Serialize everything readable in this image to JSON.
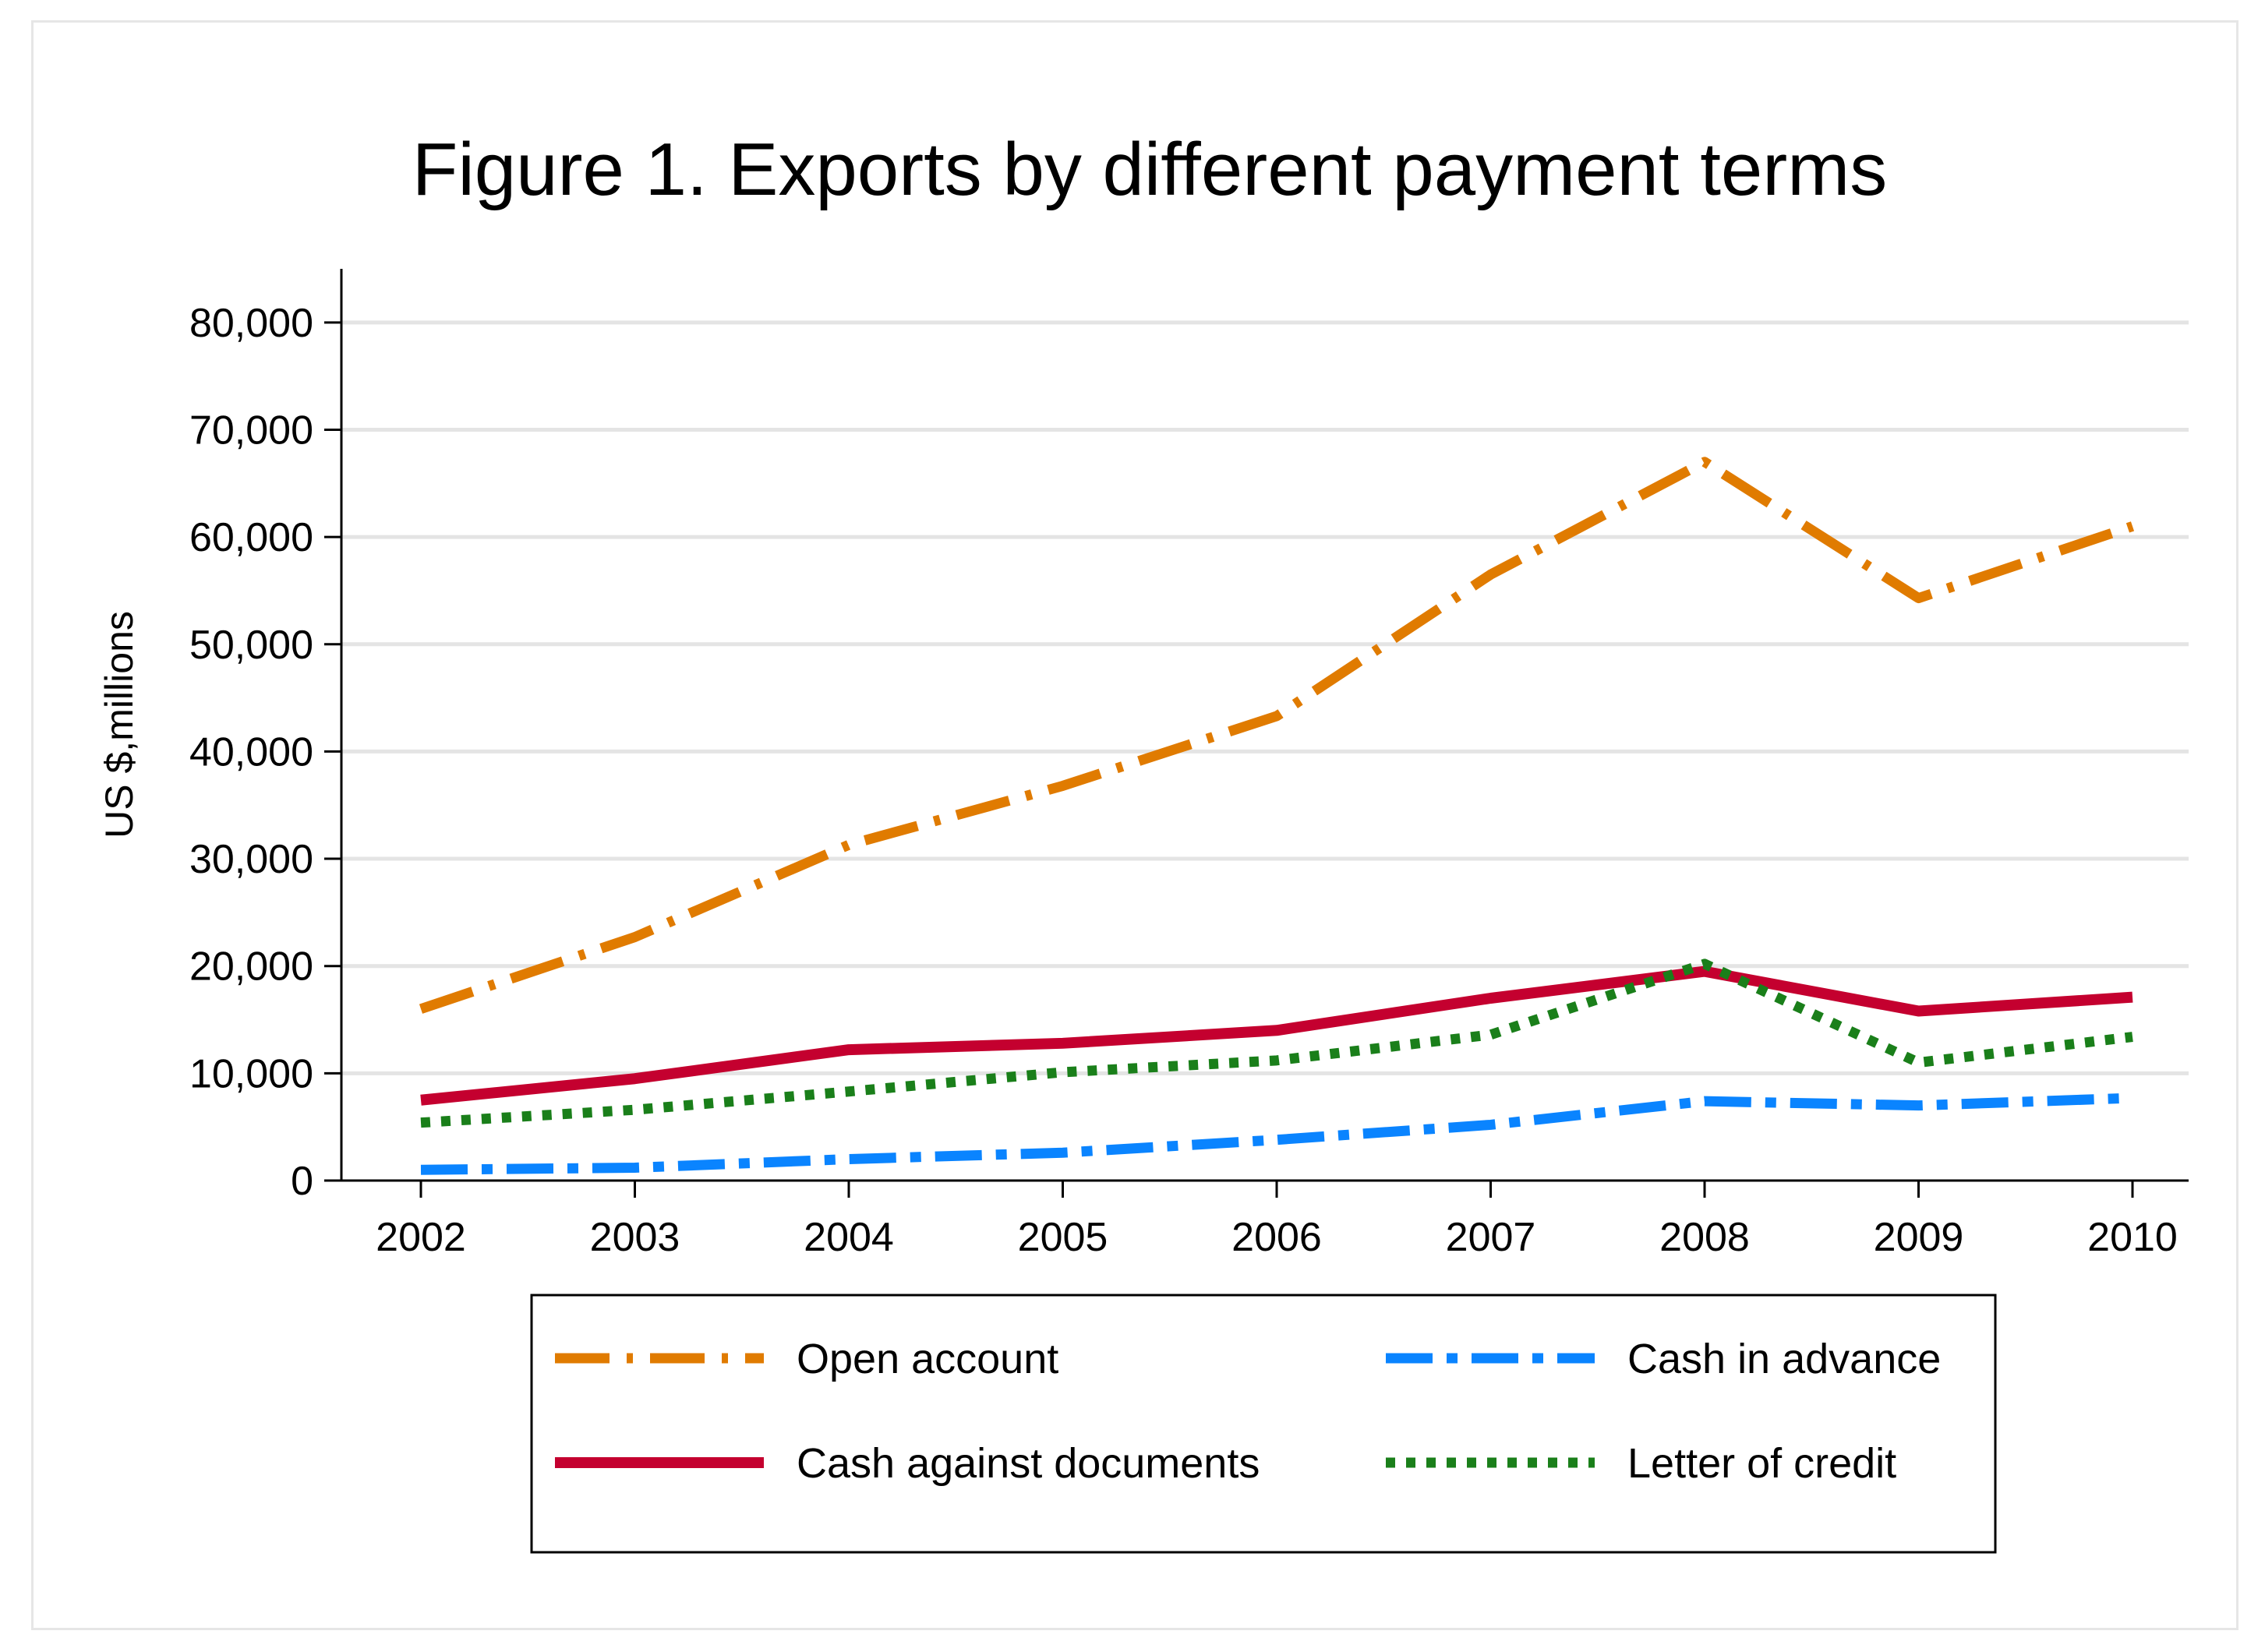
{
  "chart_data": {
    "type": "line",
    "title": "Figure 1. Exports by different payment terms",
    "xlabel": "",
    "ylabel": "US $,millions",
    "categories": [
      "2002",
      "2003",
      "2004",
      "2005",
      "2006",
      "2007",
      "2008",
      "2009",
      "2010"
    ],
    "ylim": [
      0,
      85000
    ],
    "yticks": [
      0,
      10000,
      20000,
      30000,
      40000,
      50000,
      60000,
      70000,
      80000
    ],
    "ytick_labels": [
      "0",
      "10,000",
      "20,000",
      "30,000",
      "40,000",
      "50,000",
      "60,000",
      "70,000",
      "80,000"
    ],
    "grid": true,
    "legend_position": "bottom",
    "series": [
      {
        "name": "Open account",
        "color": "#e07b00",
        "style": "dash-dot",
        "values": [
          16000,
          22700,
          31300,
          36800,
          43300,
          56500,
          67000,
          54300,
          61000
        ]
      },
      {
        "name": "Cash in advance",
        "color": "#0a84ff",
        "style": "dash-dot-dot",
        "values": [
          1000,
          1200,
          2000,
          2600,
          3800,
          5200,
          7400,
          7000,
          7700
        ]
      },
      {
        "name": "Cash against documents",
        "color": "#c4002f",
        "style": "solid",
        "values": [
          7500,
          9500,
          12200,
          12800,
          14000,
          17000,
          19500,
          15800,
          17100
        ]
      },
      {
        "name": "Letter of credit",
        "color": "#1a7f1a",
        "style": "dotted",
        "values": [
          5400,
          6600,
          8300,
          10100,
          11200,
          13600,
          20200,
          11000,
          13400
        ]
      }
    ]
  }
}
